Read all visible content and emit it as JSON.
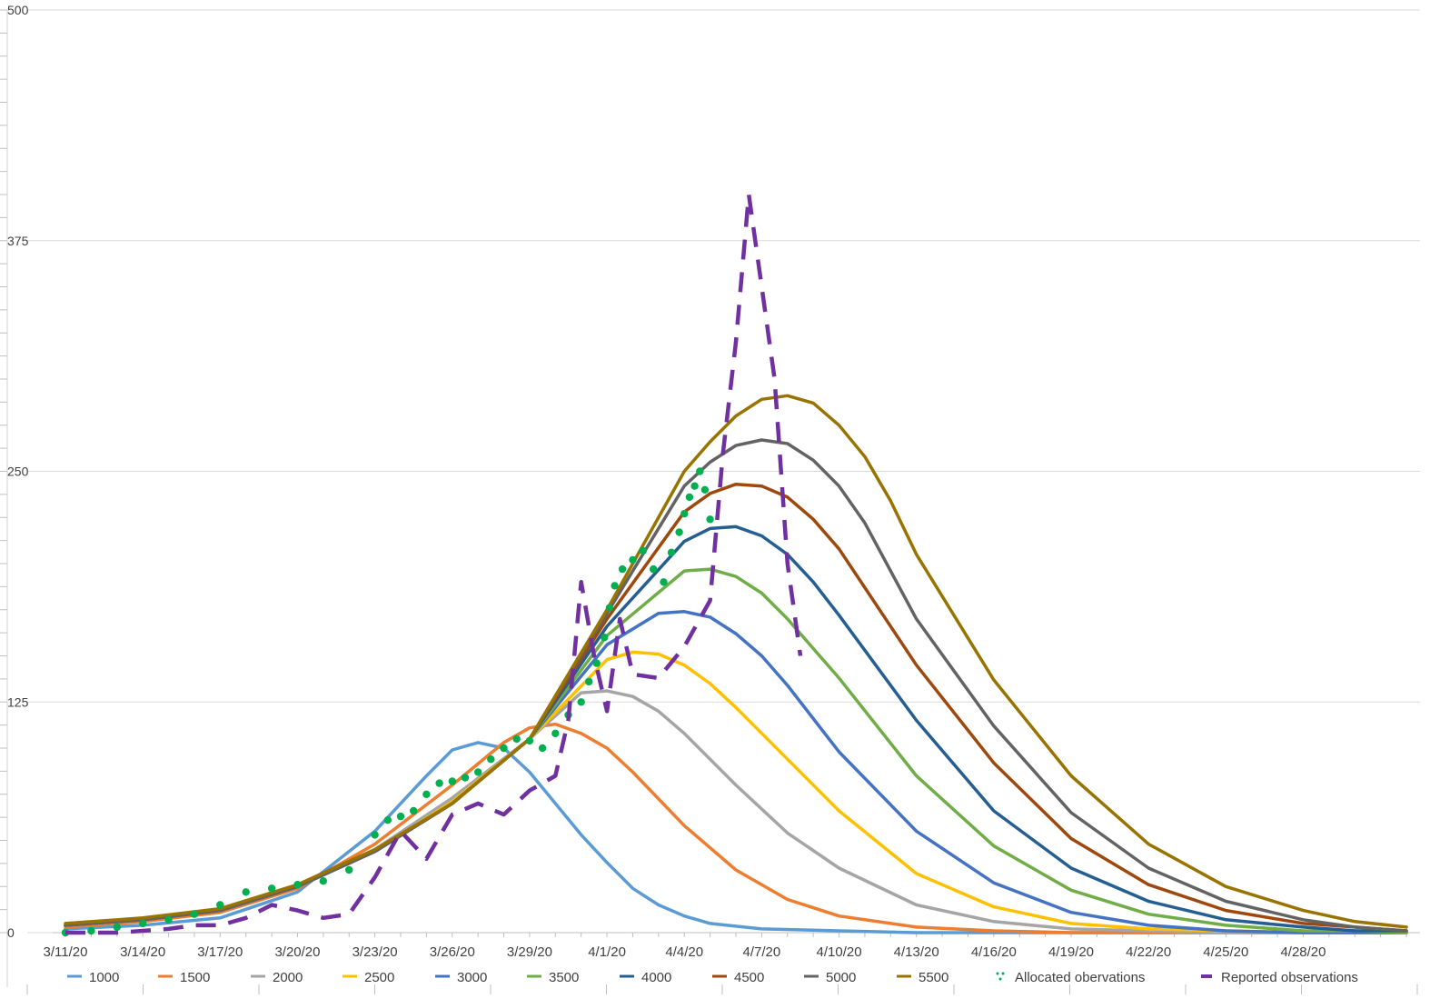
{
  "chart_data": {
    "type": "line",
    "title": "",
    "xlabel": "",
    "ylabel": "",
    "ylim": [
      0,
      500
    ],
    "yticks": [
      0,
      125,
      250,
      375,
      500
    ],
    "xlim": [
      0,
      52
    ],
    "xtick_labels": [
      "3/11/20",
      "3/14/20",
      "3/17/20",
      "3/20/20",
      "3/23/20",
      "3/26/20",
      "3/29/20",
      "4/1/20",
      "4/4/20",
      "4/7/20",
      "4/10/20",
      "4/13/20",
      "4/16/20",
      "4/19/20",
      "4/22/20",
      "4/25/20",
      "4/28/20"
    ],
    "xtick_positions": [
      0,
      3,
      6,
      9,
      12,
      15,
      18,
      21,
      24,
      27,
      30,
      33,
      36,
      39,
      42,
      45,
      48
    ],
    "grid": true,
    "legend_position": "bottom",
    "colors": {
      "s1000": "#5B9BD5",
      "s1500": "#ED7D31",
      "s2000": "#A5A5A5",
      "s2500": "#FFC000",
      "s3000": "#4472C4",
      "s3500": "#70AD47",
      "s4000": "#255E91",
      "s4500": "#9E480E",
      "s5000": "#636363",
      "s5500": "#997300",
      "allocated": "#00B050",
      "reported": "#7030A0"
    },
    "series": [
      {
        "name": "1000",
        "style": "line",
        "color": "#5B9BD5",
        "x": [
          0,
          3,
          6,
          9,
          12,
          14,
          15,
          16,
          17,
          18,
          19,
          20,
          21,
          22,
          23,
          24,
          25,
          27,
          30,
          33,
          36,
          39,
          42,
          45,
          48,
          50,
          52
        ],
        "y": [
          2,
          4,
          8,
          22,
          55,
          85,
          99,
          103,
          100,
          87,
          70,
          53,
          38,
          24,
          15,
          9,
          5,
          2,
          1,
          0,
          0,
          0,
          0,
          0,
          0,
          0,
          0
        ]
      },
      {
        "name": "1500",
        "style": "line",
        "color": "#ED7D31",
        "x": [
          0,
          3,
          6,
          9,
          12,
          15,
          17,
          18,
          19,
          20,
          21,
          22,
          24,
          26,
          28,
          30,
          33,
          36,
          39,
          42,
          45,
          48,
          50,
          52
        ],
        "y": [
          3,
          6,
          11,
          24,
          48,
          80,
          103,
          111,
          113,
          108,
          100,
          87,
          58,
          34,
          18,
          9,
          3,
          1,
          0,
          0,
          0,
          0,
          0,
          0
        ]
      },
      {
        "name": "2000",
        "style": "line",
        "color": "#A5A5A5",
        "x": [
          0,
          3,
          6,
          9,
          12,
          15,
          18,
          20,
          21,
          22,
          23,
          24,
          26,
          28,
          30,
          33,
          36,
          39,
          42,
          45,
          48,
          50,
          52
        ],
        "y": [
          4,
          7,
          12,
          25,
          45,
          73,
          105,
          130,
          131,
          128,
          120,
          108,
          80,
          54,
          35,
          15,
          6,
          2,
          1,
          0,
          0,
          0,
          0
        ]
      },
      {
        "name": "2500",
        "style": "line",
        "color": "#FFC000",
        "x": [
          0,
          3,
          6,
          9,
          12,
          15,
          18,
          21,
          22,
          23,
          24,
          25,
          26,
          28,
          30,
          33,
          36,
          39,
          42,
          45,
          48,
          50,
          52
        ],
        "y": [
          4,
          7,
          12,
          25,
          44,
          71,
          105,
          148,
          152,
          151,
          145,
          135,
          122,
          94,
          66,
          32,
          14,
          5,
          2,
          1,
          0,
          0,
          0
        ]
      },
      {
        "name": "3000",
        "style": "line",
        "color": "#4472C4",
        "x": [
          0,
          3,
          6,
          9,
          12,
          15,
          18,
          21,
          23,
          24,
          25,
          26,
          27,
          28,
          30,
          33,
          36,
          39,
          42,
          45,
          48,
          50,
          52
        ],
        "y": [
          4,
          7,
          12,
          25,
          44,
          70,
          105,
          156,
          173,
          174,
          171,
          162,
          150,
          134,
          98,
          55,
          27,
          11,
          4,
          1,
          0,
          0,
          0
        ]
      },
      {
        "name": "3500",
        "style": "line",
        "color": "#70AD47",
        "x": [
          0,
          3,
          6,
          9,
          12,
          15,
          18,
          21,
          24,
          25,
          26,
          27,
          28,
          30,
          33,
          36,
          39,
          42,
          45,
          48,
          50,
          52
        ],
        "y": [
          4,
          7,
          12,
          25,
          44,
          70,
          105,
          161,
          196,
          197,
          193,
          184,
          170,
          138,
          85,
          47,
          23,
          10,
          4,
          1,
          1,
          0
        ],
        "note": ""
      },
      {
        "name": "4000",
        "style": "line",
        "color": "#255E91",
        "x": [
          0,
          3,
          6,
          9,
          12,
          15,
          18,
          21,
          24,
          25,
          26,
          27,
          28,
          29,
          30,
          33,
          36,
          39,
          42,
          45,
          48,
          50,
          52
        ],
        "y": [
          4,
          7,
          12,
          25,
          44,
          70,
          105,
          166,
          212,
          219,
          220,
          215,
          205,
          190,
          172,
          115,
          66,
          35,
          17,
          7,
          3,
          1,
          1
        ]
      },
      {
        "name": "4500",
        "style": "line",
        "color": "#9E480E",
        "x": [
          0,
          3,
          6,
          9,
          12,
          15,
          18,
          21,
          24,
          25,
          26,
          27,
          28,
          29,
          30,
          33,
          36,
          39,
          42,
          45,
          48,
          50,
          52
        ],
        "y": [
          4,
          7,
          12,
          25,
          44,
          70,
          105,
          170,
          228,
          238,
          243,
          242,
          236,
          224,
          208,
          145,
          92,
          51,
          26,
          12,
          5,
          3,
          1
        ]
      },
      {
        "name": "5000",
        "style": "line",
        "color": "#636363",
        "x": [
          0,
          3,
          6,
          9,
          12,
          15,
          18,
          21,
          24,
          25,
          26,
          27,
          28,
          29,
          30,
          31,
          33,
          36,
          39,
          42,
          45,
          48,
          50,
          52
        ],
        "y": [
          4,
          7,
          12,
          25,
          44,
          70,
          105,
          173,
          242,
          255,
          264,
          267,
          265,
          256,
          242,
          222,
          170,
          112,
          65,
          35,
          17,
          7,
          3,
          1
        ]
      },
      {
        "name": "5500",
        "style": "line",
        "color": "#997300",
        "x": [
          0,
          3,
          6,
          9,
          12,
          15,
          18,
          21,
          24,
          25,
          26,
          27,
          28,
          29,
          30,
          31,
          32,
          33,
          36,
          39,
          42,
          45,
          48,
          50,
          52
        ],
        "y": [
          5,
          8,
          13,
          26,
          45,
          70,
          105,
          175,
          250,
          266,
          280,
          289,
          291,
          287,
          275,
          258,
          234,
          205,
          137,
          85,
          48,
          25,
          12,
          6,
          3
        ]
      },
      {
        "name": "Allocated obervations",
        "style": "dots",
        "color": "#00B050",
        "x": [
          0,
          1,
          2,
          3,
          4,
          5,
          6,
          7,
          8,
          9,
          10,
          11,
          12,
          12.5,
          13,
          13.5,
          14,
          14.5,
          15,
          15.5,
          16,
          16.5,
          17,
          17.5,
          18,
          18.5,
          19,
          19.5,
          20,
          20.3,
          20.6,
          20.9,
          21.1,
          21.3,
          21.6,
          22,
          22.4,
          22.8,
          23.2,
          23.5,
          23.8,
          24,
          24.2,
          24.4,
          24.6,
          24.8,
          25
        ],
        "y": [
          0,
          1,
          3,
          5,
          7,
          10,
          15,
          22,
          24,
          26,
          28,
          34,
          53,
          61,
          63,
          66,
          75,
          81,
          82,
          84,
          87,
          94,
          100,
          105,
          104,
          100,
          108,
          118,
          125,
          136,
          146,
          160,
          176,
          188,
          197,
          202,
          207,
          197,
          190,
          206,
          217,
          227,
          236,
          242,
          250,
          240,
          224
        ]
      },
      {
        "name": "Reported observations",
        "style": "dashed",
        "color": "#7030A0",
        "x": [
          0,
          1,
          2,
          3,
          4,
          5,
          6,
          7,
          8,
          9,
          10,
          11,
          12,
          13,
          14,
          15,
          16,
          17,
          18,
          19,
          19.5,
          20,
          20.5,
          21,
          21.5,
          22,
          23,
          24,
          25,
          25.5,
          26,
          26.5,
          27,
          27.5,
          28,
          28.5
        ],
        "y": [
          0,
          0,
          0,
          1,
          2,
          4,
          4,
          8,
          15,
          12,
          8,
          10,
          30,
          55,
          40,
          64,
          70,
          64,
          77,
          85,
          115,
          190,
          150,
          120,
          170,
          140,
          138,
          155,
          180,
          260,
          320,
          400,
          350,
          300,
          200,
          150
        ]
      }
    ]
  }
}
